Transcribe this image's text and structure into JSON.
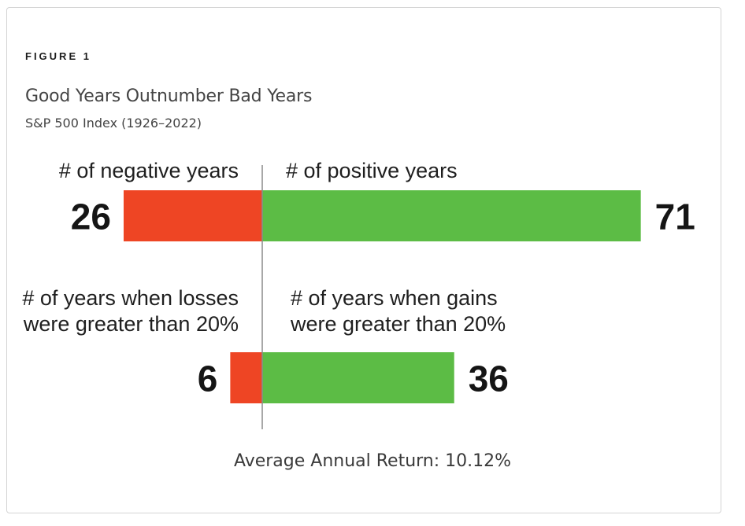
{
  "figure_label": "FIGURE 1",
  "colors": {
    "negative": "#ee4524",
    "positive": "#5cbc45",
    "axis": "#8c8c8c"
  },
  "chart_data": {
    "type": "bar",
    "orientation": "diverging-horizontal",
    "title": "Good Years Outnumber Bad Years",
    "subtitle": "S&P 500 Index (1926–2022)",
    "rows": [
      {
        "negative": {
          "label": [
            "# of negative years"
          ],
          "value": 26
        },
        "positive": {
          "label": [
            "# of positive years"
          ],
          "value": 71
        }
      },
      {
        "negative": {
          "label": [
            "# of years when losses",
            "were greater than 20%"
          ],
          "value": 6
        },
        "positive": {
          "label": [
            "# of years when gains",
            "were greater than 20%"
          ],
          "value": 36
        }
      }
    ],
    "annotation": "Average Annual Return: 10.12%",
    "grid": false,
    "legend": "none"
  }
}
